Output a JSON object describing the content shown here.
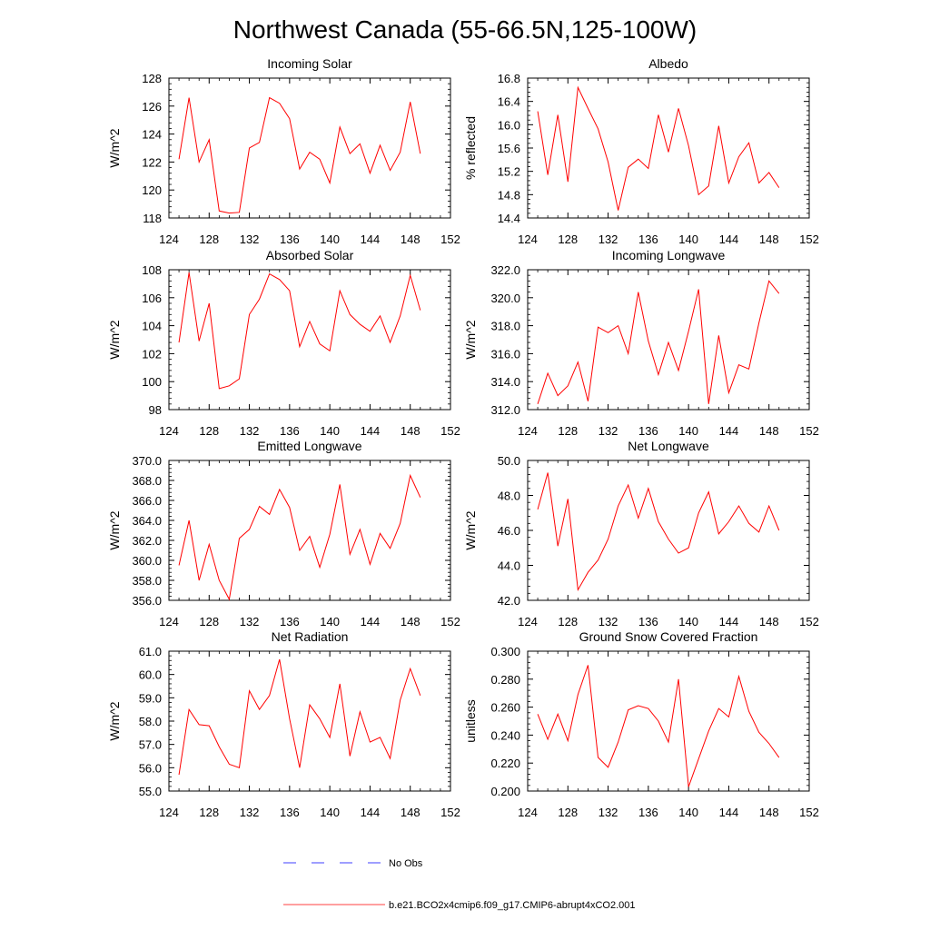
{
  "title": "Northwest Canada (55-66.5N,125-100W)",
  "colors": {
    "series": "#ff0000",
    "obs": "#0000ff",
    "axis": "#000000"
  },
  "legend": {
    "obs_label": "No Obs",
    "model_label": "b.e21.BCO2x4cmip6.f09_g17.CMIP6-abrupt4xCO2.001"
  },
  "chart_data": [
    {
      "type": "line",
      "title": "Incoming Solar",
      "ylabel": "W/m^2",
      "xlim": [
        124,
        152
      ],
      "ylim": [
        118,
        128
      ],
      "xticks": [
        124,
        128,
        132,
        136,
        140,
        144,
        148,
        152
      ],
      "yticks": [
        118,
        120,
        122,
        124,
        126,
        128
      ],
      "ytick_labels": [
        "118",
        "120",
        "122",
        "124",
        "126",
        "128"
      ],
      "x": [
        125,
        126,
        127,
        128,
        129,
        130,
        131,
        132,
        133,
        134,
        135,
        136,
        137,
        138,
        139,
        140,
        141,
        142,
        143,
        144,
        145,
        146,
        147,
        148,
        149
      ],
      "series": [
        {
          "name": "b.e21.BCO2x4cmip6.f09_g17.CMIP6-abrupt4xCO2.001",
          "values": [
            122.2,
            126.6,
            122.0,
            123.6,
            118.5,
            118.35,
            118.4,
            123.0,
            123.4,
            126.6,
            126.2,
            125.1,
            121.5,
            122.7,
            122.2,
            120.5,
            124.5,
            122.6,
            123.3,
            121.2,
            123.2,
            121.4,
            122.7,
            126.3,
            122.6
          ]
        }
      ]
    },
    {
      "type": "line",
      "title": "Albedo",
      "ylabel": "% reflected",
      "xlim": [
        124,
        152
      ],
      "ylim": [
        14.4,
        16.8
      ],
      "xticks": [
        124,
        128,
        132,
        136,
        140,
        144,
        148,
        152
      ],
      "yticks": [
        14.4,
        14.8,
        15.2,
        15.6,
        16.0,
        16.4,
        16.8
      ],
      "ytick_labels": [
        "14.4",
        "14.8",
        "15.2",
        "15.6",
        "16.0",
        "16.4",
        "16.8"
      ],
      "x": [
        125,
        126,
        127,
        128,
        129,
        130,
        131,
        132,
        133,
        134,
        135,
        136,
        137,
        138,
        139,
        140,
        141,
        142,
        143,
        144,
        145,
        146,
        147,
        148,
        149
      ],
      "series": [
        {
          "name": "b.e21.BCO2x4cmip6.f09_g17.CMIP6-abrupt4xCO2.001",
          "values": [
            16.23,
            15.14,
            16.17,
            15.02,
            16.64,
            16.28,
            15.93,
            15.36,
            14.53,
            15.27,
            15.41,
            15.25,
            16.17,
            15.53,
            16.28,
            15.64,
            14.8,
            14.95,
            15.98,
            15.0,
            15.45,
            15.69,
            15.0,
            15.18,
            14.92
          ]
        }
      ]
    },
    {
      "type": "line",
      "title": "Absorbed Solar",
      "ylabel": "W/m^2",
      "xlim": [
        124,
        152
      ],
      "ylim": [
        98,
        108
      ],
      "xticks": [
        124,
        128,
        132,
        136,
        140,
        144,
        148,
        152
      ],
      "yticks": [
        98,
        100,
        102,
        104,
        106,
        108
      ],
      "ytick_labels": [
        "98",
        "100",
        "102",
        "104",
        "106",
        "108"
      ],
      "x": [
        125,
        126,
        127,
        128,
        129,
        130,
        131,
        132,
        133,
        134,
        135,
        136,
        137,
        138,
        139,
        140,
        141,
        142,
        143,
        144,
        145,
        146,
        147,
        148,
        149
      ],
      "series": [
        {
          "name": "b.e21.BCO2x4cmip6.f09_g17.CMIP6-abrupt4xCO2.001",
          "values": [
            102.8,
            107.8,
            102.9,
            105.6,
            99.5,
            99.7,
            100.2,
            104.8,
            105.9,
            107.7,
            107.3,
            106.5,
            102.5,
            104.3,
            102.7,
            102.2,
            106.5,
            104.8,
            104.1,
            103.6,
            104.7,
            102.8,
            104.7,
            107.6,
            105.1
          ]
        }
      ]
    },
    {
      "type": "line",
      "title": "Incoming Longwave",
      "ylabel": "W/m^2",
      "xlim": [
        124,
        152
      ],
      "ylim": [
        312.0,
        322.0
      ],
      "xticks": [
        124,
        128,
        132,
        136,
        140,
        144,
        148,
        152
      ],
      "yticks": [
        312,
        314,
        316,
        318,
        320,
        322
      ],
      "ytick_labels": [
        "312.0",
        "314.0",
        "316.0",
        "318.0",
        "320.0",
        "322.0"
      ],
      "x": [
        125,
        126,
        127,
        128,
        129,
        130,
        131,
        132,
        133,
        134,
        135,
        136,
        137,
        138,
        139,
        140,
        141,
        142,
        143,
        144,
        145,
        146,
        147,
        148,
        149
      ],
      "series": [
        {
          "name": "b.e21.BCO2x4cmip6.f09_g17.CMIP6-abrupt4xCO2.001",
          "values": [
            312.4,
            314.6,
            313.0,
            313.7,
            315.4,
            312.6,
            317.9,
            317.5,
            318.0,
            316.0,
            320.4,
            316.9,
            314.5,
            316.8,
            314.8,
            317.6,
            320.6,
            312.4,
            317.3,
            313.2,
            315.2,
            314.9,
            318.2,
            321.2,
            320.3
          ]
        }
      ]
    },
    {
      "type": "line",
      "title": "Emitted Longwave",
      "ylabel": "W/m^2",
      "xlim": [
        124,
        152
      ],
      "ylim": [
        356.0,
        370.0
      ],
      "xticks": [
        124,
        128,
        132,
        136,
        140,
        144,
        148,
        152
      ],
      "yticks": [
        356,
        358,
        360,
        362,
        364,
        366,
        368,
        370
      ],
      "ytick_labels": [
        "356.0",
        "358.0",
        "360.0",
        "362.0",
        "364.0",
        "366.0",
        "368.0",
        "370.0"
      ],
      "x": [
        125,
        126,
        127,
        128,
        129,
        130,
        131,
        132,
        133,
        134,
        135,
        136,
        137,
        138,
        139,
        140,
        141,
        142,
        143,
        144,
        145,
        146,
        147,
        148,
        149
      ],
      "series": [
        {
          "name": "b.e21.BCO2x4cmip6.f09_g17.CMIP6-abrupt4xCO2.001",
          "values": [
            359.5,
            364.0,
            358.0,
            361.6,
            358.0,
            356.1,
            362.2,
            363.1,
            365.4,
            364.6,
            367.1,
            365.3,
            361.0,
            362.4,
            359.3,
            362.6,
            367.6,
            360.6,
            363.1,
            359.6,
            362.7,
            361.2,
            363.7,
            368.5,
            366.3
          ]
        }
      ]
    },
    {
      "type": "line",
      "title": "Net Longwave",
      "ylabel": "W/m^2",
      "xlim": [
        124,
        152
      ],
      "ylim": [
        42.0,
        50.0
      ],
      "xticks": [
        124,
        128,
        132,
        136,
        140,
        144,
        148,
        152
      ],
      "yticks": [
        42,
        44,
        46,
        48,
        50
      ],
      "ytick_labels": [
        "42.0",
        "44.0",
        "46.0",
        "48.0",
        "50.0"
      ],
      "x": [
        125,
        126,
        127,
        128,
        129,
        130,
        131,
        132,
        133,
        134,
        135,
        136,
        137,
        138,
        139,
        140,
        141,
        142,
        143,
        144,
        145,
        146,
        147,
        148,
        149
      ],
      "series": [
        {
          "name": "b.e21.BCO2x4cmip6.f09_g17.CMIP6-abrupt4xCO2.001",
          "values": [
            47.2,
            49.3,
            45.1,
            47.8,
            42.6,
            43.6,
            44.3,
            45.5,
            47.4,
            48.6,
            46.7,
            48.4,
            46.5,
            45.5,
            44.7,
            45.0,
            47.0,
            48.2,
            45.8,
            46.5,
            47.4,
            46.4,
            45.9,
            47.4,
            46.0
          ]
        }
      ]
    },
    {
      "type": "line",
      "title": "Net Radiation",
      "ylabel": "W/m^2",
      "xlim": [
        124,
        152
      ],
      "ylim": [
        55.0,
        61.0
      ],
      "xticks": [
        124,
        128,
        132,
        136,
        140,
        144,
        148,
        152
      ],
      "yticks": [
        55,
        56,
        57,
        58,
        59,
        60,
        61
      ],
      "ytick_labels": [
        "55.0",
        "56.0",
        "57.0",
        "58.0",
        "59.0",
        "60.0",
        "61.0"
      ],
      "x": [
        125,
        126,
        127,
        128,
        129,
        130,
        131,
        132,
        133,
        134,
        135,
        136,
        137,
        138,
        139,
        140,
        141,
        142,
        143,
        144,
        145,
        146,
        147,
        148,
        149
      ],
      "series": [
        {
          "name": "b.e21.BCO2x4cmip6.f09_g17.CMIP6-abrupt4xCO2.001",
          "values": [
            55.7,
            58.5,
            57.85,
            57.8,
            56.9,
            56.15,
            56.0,
            59.3,
            58.5,
            59.1,
            60.65,
            58.1,
            56.0,
            58.7,
            58.1,
            57.3,
            59.6,
            56.5,
            58.4,
            57.1,
            57.3,
            56.4,
            58.9,
            60.25,
            59.1
          ]
        }
      ]
    },
    {
      "type": "line",
      "title": "Ground Snow Covered Fraction",
      "ylabel": "unitless",
      "xlim": [
        124,
        152
      ],
      "ylim": [
        0.2,
        0.3
      ],
      "xticks": [
        124,
        128,
        132,
        136,
        140,
        144,
        148,
        152
      ],
      "yticks": [
        0.2,
        0.22,
        0.24,
        0.26,
        0.28,
        0.3
      ],
      "ytick_labels": [
        "0.200",
        "0.220",
        "0.240",
        "0.260",
        "0.280",
        "0.300"
      ],
      "x": [
        125,
        126,
        127,
        128,
        129,
        130,
        131,
        132,
        133,
        134,
        135,
        136,
        137,
        138,
        139,
        140,
        141,
        142,
        143,
        144,
        145,
        146,
        147,
        148,
        149
      ],
      "series": [
        {
          "name": "b.e21.BCO2x4cmip6.f09_g17.CMIP6-abrupt4xCO2.001",
          "values": [
            0.255,
            0.237,
            0.255,
            0.236,
            0.269,
            0.29,
            0.224,
            0.217,
            0.235,
            0.258,
            0.261,
            0.259,
            0.25,
            0.235,
            0.28,
            0.203,
            0.223,
            0.243,
            0.259,
            0.253,
            0.282,
            0.257,
            0.242,
            0.234,
            0.224
          ]
        }
      ]
    }
  ]
}
